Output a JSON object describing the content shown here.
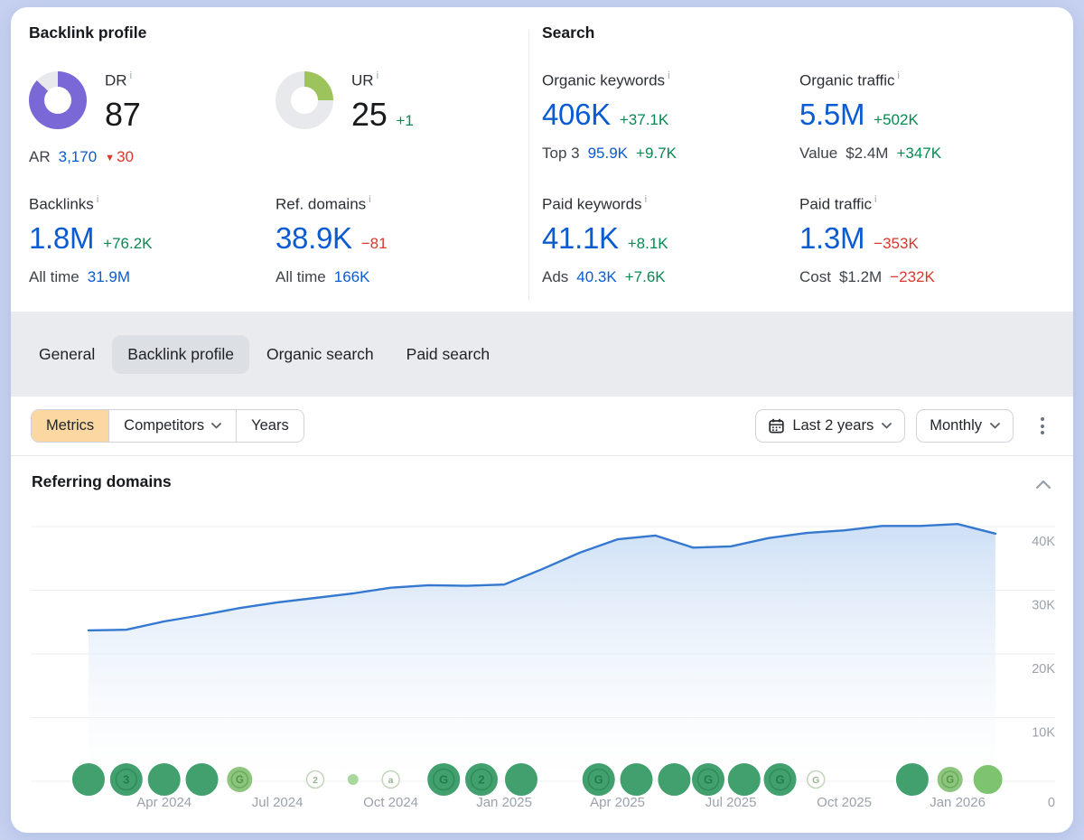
{
  "overview": {
    "backlink_profile": {
      "title": "Backlink profile",
      "dr": {
        "label": "DR",
        "value": "87",
        "donut": {
          "pct": 87,
          "color": "#7a68d6",
          "track": "#e8e9ec"
        }
      },
      "ur": {
        "label": "UR",
        "value": "25",
        "delta": "+1",
        "donut": {
          "pct": 25,
          "color": "#9cc35c",
          "track": "#e8e9ec"
        }
      },
      "ar": {
        "label": "AR",
        "value": "3,170",
        "delta_icon": "▼",
        "delta": "30"
      },
      "backlinks": {
        "label": "Backlinks",
        "value": "1.8M",
        "delta": "+76.2K",
        "sub_label": "All time",
        "sub_value": "31.9M"
      },
      "ref_domains": {
        "label": "Ref. domains",
        "value": "38.9K",
        "delta": "−81",
        "sub_label": "All time",
        "sub_value": "166K"
      }
    },
    "search": {
      "title": "Search",
      "organic_keywords": {
        "label": "Organic keywords",
        "value": "406K",
        "delta": "+37.1K",
        "sub_label": "Top 3",
        "sub_value": "95.9K",
        "sub_delta": "+9.7K"
      },
      "organic_traffic": {
        "label": "Organic traffic",
        "value": "5.5M",
        "delta": "+502K",
        "sub_label": "Value",
        "sub_value": "$2.4M",
        "sub_delta": "+347K"
      },
      "paid_keywords": {
        "label": "Paid keywords",
        "value": "41.1K",
        "delta": "+8.1K",
        "sub_label": "Ads",
        "sub_value": "40.3K",
        "sub_delta": "+7.6K"
      },
      "paid_traffic": {
        "label": "Paid traffic",
        "value": "1.3M",
        "delta": "−353K",
        "sub_label": "Cost",
        "sub_value": "$1.2M",
        "sub_delta": "−232K"
      }
    },
    "info_icon": "i"
  },
  "tabs": [
    {
      "label": "General",
      "active": false
    },
    {
      "label": "Backlink profile",
      "active": true
    },
    {
      "label": "Organic search",
      "active": false
    },
    {
      "label": "Paid search",
      "active": false
    }
  ],
  "toolbar": {
    "metrics_label": "Metrics",
    "competitors_label": "Competitors",
    "years_label": "Years",
    "date_range_label": "Last 2 years",
    "granularity_label": "Monthly",
    "metrics_active_bg": "#fbd8a2"
  },
  "chart_section": {
    "title": "Referring domains"
  },
  "chart_data": {
    "type": "area",
    "title": "Referring domains",
    "unit": "K referring domains",
    "months": [
      "Feb 2024",
      "Mar 2024",
      "Apr 2024",
      "May 2024",
      "Jun 2024",
      "Jul 2024",
      "Aug 2024",
      "Sep 2024",
      "Oct 2024",
      "Nov 2024",
      "Dec 2024",
      "Jan 2025",
      "Feb 2025",
      "Mar 2025",
      "Apr 2025",
      "May 2025",
      "Jun 2025",
      "Jul 2025",
      "Aug 2025",
      "Sep 2025",
      "Oct 2025",
      "Nov 2025",
      "Dec 2025",
      "Jan 2026",
      "Feb 2026"
    ],
    "values_k": [
      23.7,
      23.8,
      25.1,
      26.1,
      27.2,
      28.1,
      28.8,
      29.5,
      30.4,
      30.8,
      30.7,
      30.9,
      33.3,
      35.9,
      38.0,
      38.6,
      36.7,
      36.9,
      38.2,
      39.0,
      39.4,
      40.1,
      40.1,
      40.4,
      38.9
    ],
    "ylim_k": [
      0,
      44
    ],
    "grid": "horizontal",
    "legend": "none",
    "y_ticks": [
      {
        "v": 40,
        "label": "40K"
      },
      {
        "v": 30,
        "label": "30K"
      },
      {
        "v": 20,
        "label": "20K"
      },
      {
        "v": 10,
        "label": "10K"
      },
      {
        "v": 0,
        "label": "0"
      }
    ],
    "x_ticks": [
      {
        "month_index": 2,
        "label": "Apr 2024"
      },
      {
        "month_index": 5,
        "label": "Jul 2024"
      },
      {
        "month_index": 8,
        "label": "Oct 2024"
      },
      {
        "month_index": 11,
        "label": "Jan 2025"
      },
      {
        "month_index": 14,
        "label": "Apr 2025"
      },
      {
        "month_index": 17,
        "label": "Jul 2025"
      },
      {
        "month_index": 20,
        "label": "Oct 2025"
      },
      {
        "month_index": 23,
        "label": "Jan 2026"
      }
    ],
    "events": [
      {
        "month_index": 0,
        "style": "lg_solid",
        "glyph": ""
      },
      {
        "month_index": 1,
        "style": "lg_letter",
        "glyph": "3"
      },
      {
        "month_index": 2,
        "style": "lg_solid",
        "glyph": ""
      },
      {
        "month_index": 3,
        "style": "lg_solid",
        "glyph": ""
      },
      {
        "month_index": 4,
        "style": "md_letter",
        "glyph": "G"
      },
      {
        "month_index": 6,
        "style": "sm_outline",
        "glyph": "2"
      },
      {
        "month_index": 7,
        "style": "dot",
        "glyph": ""
      },
      {
        "month_index": 8,
        "style": "sm_outline",
        "glyph": "a"
      },
      {
        "month_index": 9.4,
        "style": "lg_letter",
        "glyph": "G"
      },
      {
        "month_index": 10.4,
        "style": "lg_letter",
        "glyph": "2"
      },
      {
        "month_index": 11.45,
        "style": "lg_solid",
        "glyph": ""
      },
      {
        "month_index": 13.5,
        "style": "lg_letter",
        "glyph": "G"
      },
      {
        "month_index": 14.5,
        "style": "lg_solid",
        "glyph": ""
      },
      {
        "month_index": 15.5,
        "style": "lg_solid",
        "glyph": ""
      },
      {
        "month_index": 16.4,
        "style": "lg_letter",
        "glyph": "G"
      },
      {
        "month_index": 17.35,
        "style": "lg_solid",
        "glyph": ""
      },
      {
        "month_index": 18.3,
        "style": "lg_letter",
        "glyph": "G"
      },
      {
        "month_index": 19.25,
        "style": "sm_outline",
        "glyph": "G"
      },
      {
        "month_index": 21.8,
        "style": "lg_solid",
        "glyph": ""
      },
      {
        "month_index": 22.8,
        "style": "md_letter",
        "glyph": "G"
      },
      {
        "month_index": 23.8,
        "style": "md_solid_light",
        "glyph": ""
      }
    ],
    "colors": {
      "line": "#3478d0",
      "fill_top": "#cbdef5",
      "fill_bottom": "#ffffff",
      "grid": "#ebedf0",
      "axis_text": "#9ba2ab",
      "event_green": "#41a06e",
      "event_green_light": "#8dc47e",
      "event_green_pale": "#aad79c"
    }
  }
}
